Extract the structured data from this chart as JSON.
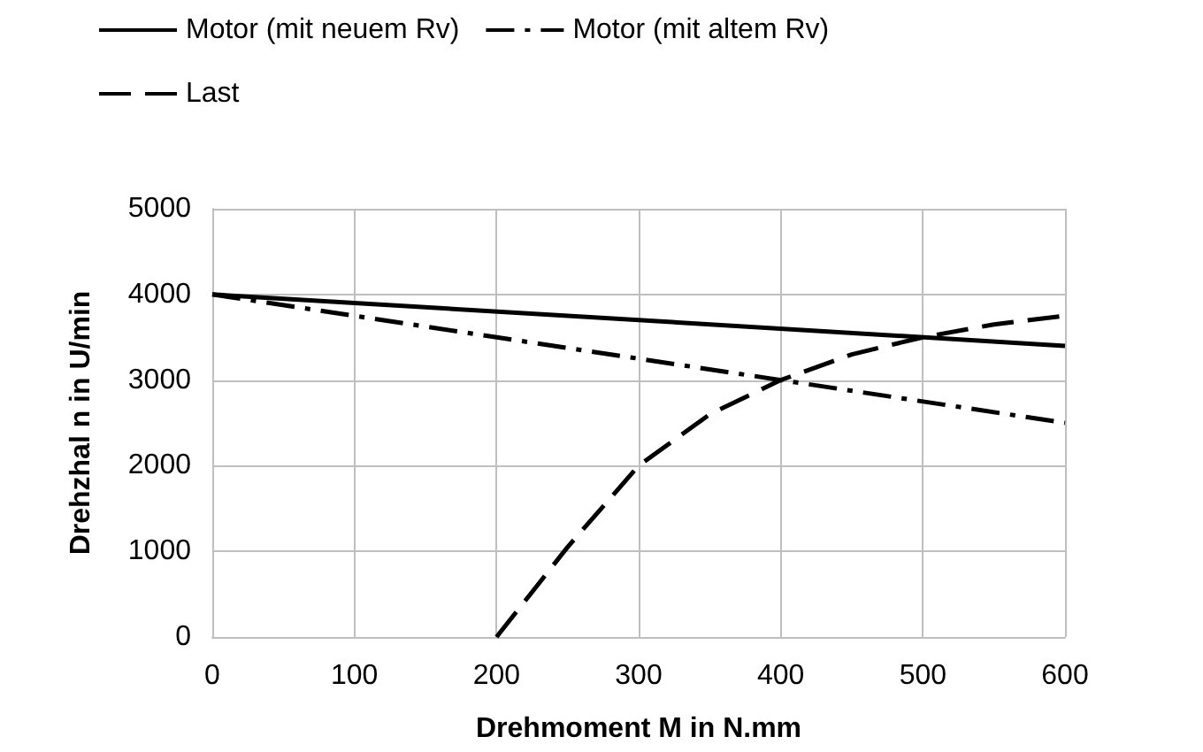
{
  "chart_data": {
    "type": "line",
    "xlabel": "Drehmoment M in N.mm",
    "ylabel": "Drehzhal n in U/min",
    "xlim": [
      0,
      600
    ],
    "xticks": [
      0,
      100,
      200,
      300,
      400,
      500,
      600
    ],
    "ylim": [
      0,
      5000
    ],
    "yticks": [
      0,
      1000,
      2000,
      3000,
      4000,
      5000
    ],
    "grid": true,
    "legend": "top",
    "marker": "none",
    "series": [
      {
        "name": "Motor (mit neuem Rv)",
        "color": "#000000",
        "line_style": "solid",
        "x": [
          0,
          600
        ],
        "values": [
          4000,
          3400
        ]
      },
      {
        "name": "Motor (mit altem Rv)",
        "color": "#000000",
        "line_style": "dashdot",
        "x": [
          0,
          600
        ],
        "values": [
          4000,
          2500
        ]
      },
      {
        "name": "Last",
        "color": "#000000",
        "line_style": "dashed",
        "x": [
          200,
          250,
          300,
          350,
          400,
          450,
          500,
          550,
          600
        ],
        "values": [
          0,
          1050,
          2000,
          2600,
          3000,
          3300,
          3500,
          3650,
          3750
        ]
      }
    ]
  }
}
